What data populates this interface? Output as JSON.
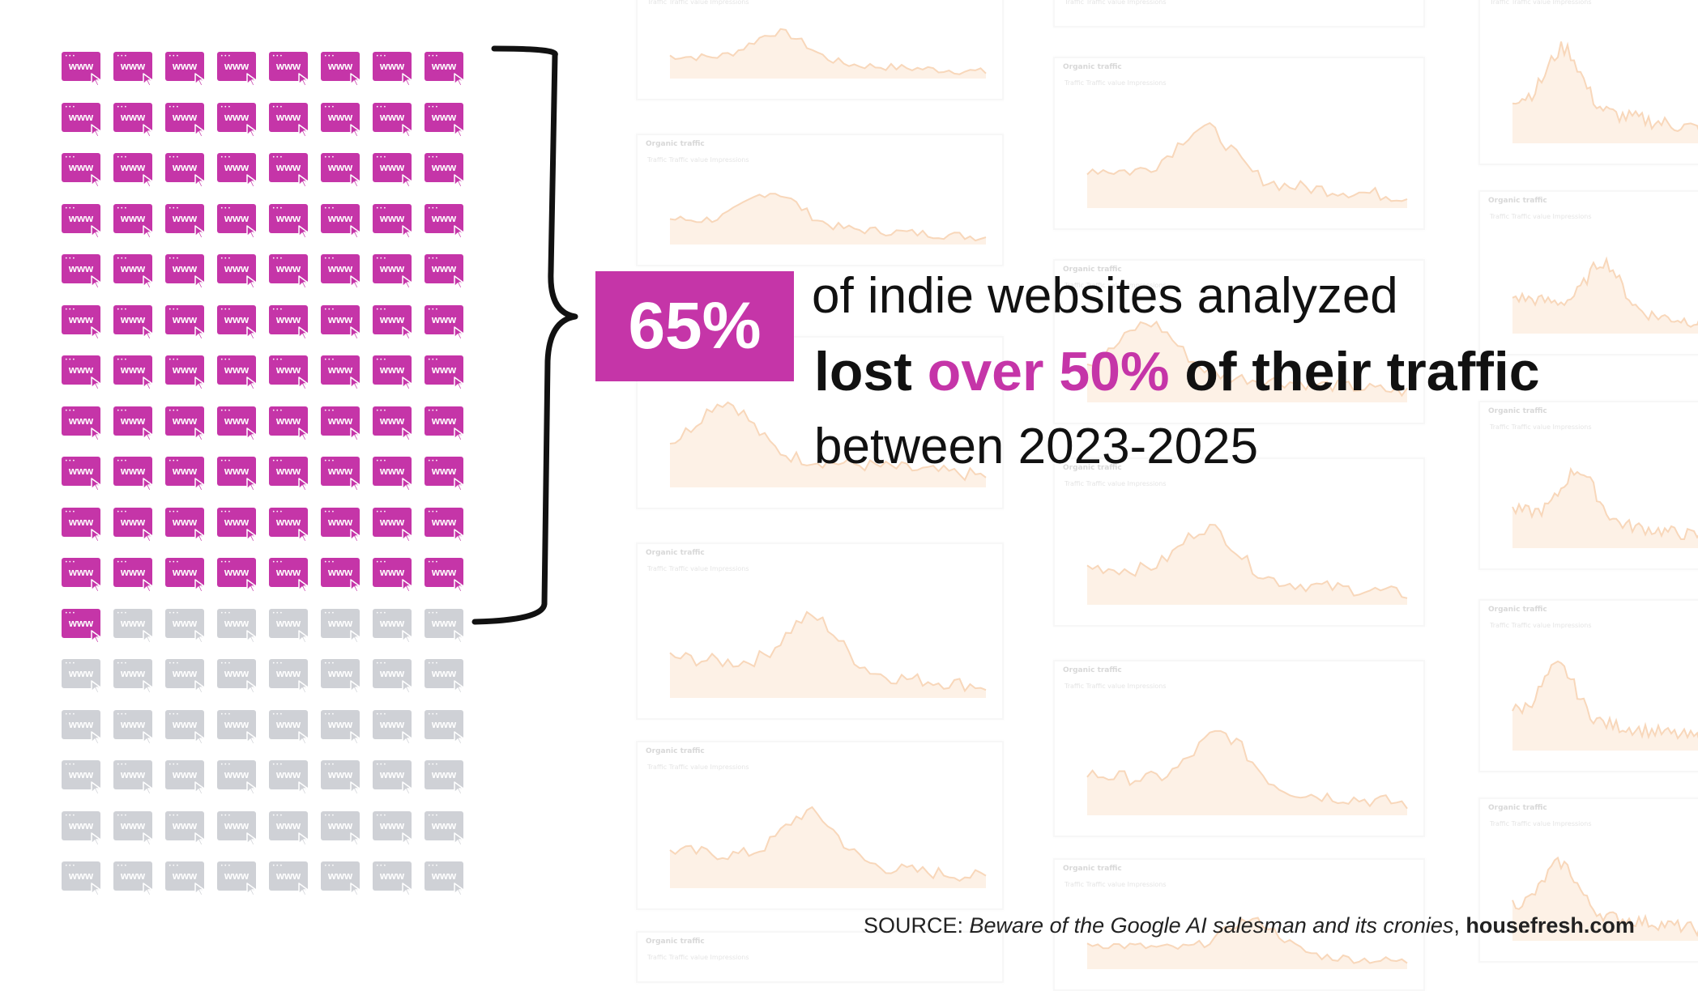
{
  "headline": {
    "percent": "65%",
    "line1": "of indie websites analyzed",
    "line2_pre": "lost ",
    "line2_accent": "over 50%",
    "line2_post": " of their traffic",
    "line3": "between 2023-2025"
  },
  "source": {
    "prefix": "SOURCE: ",
    "title": "Beware of the Google AI salesman and its cronies",
    "separator": ", ",
    "site": "housefresh.com"
  },
  "icon_grid": {
    "label": "www",
    "total": 136,
    "highlighted": 89,
    "columns": 8
  },
  "background_cards": {
    "title": "Organic traffic",
    "options": [
      "Traffic",
      "Traffic value",
      "Impressions"
    ]
  },
  "colors": {
    "accent": "#c535a8",
    "inactive_icon": "#cfd1d6",
    "chart_line": "#f3b783",
    "chart_fill": "#fde6d2",
    "text": "#111111"
  }
}
